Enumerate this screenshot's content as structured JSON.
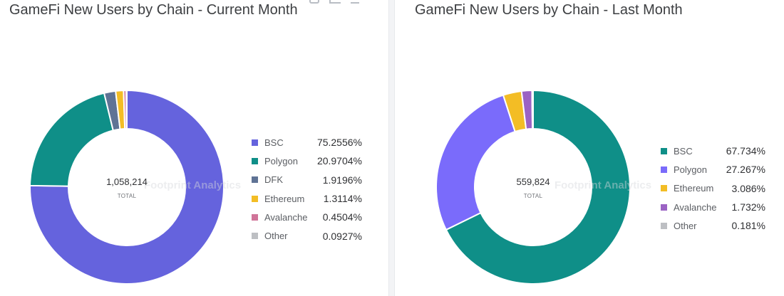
{
  "chart_data": [
    {
      "type": "pie",
      "title": "GameFi New Users by Chain - Current Month",
      "total_value": "1,058,214",
      "total_label": "TOTAL",
      "watermark": "Footprint Analytics",
      "categories": [
        "BSC",
        "Polygon",
        "DFK",
        "Ethereum",
        "Avalanche",
        "Other"
      ],
      "values": [
        75.2556,
        20.9704,
        1.9196,
        1.3114,
        0.4504,
        0.0927
      ],
      "value_labels": [
        "75.2556%",
        "20.9704%",
        "1.9196%",
        "1.3114%",
        "0.4504%",
        "0.0927%"
      ],
      "colors": [
        "#6563dd",
        "#0f8f88",
        "#5f7395",
        "#f3bd25",
        "#d07499",
        "#bdbfc3"
      ],
      "legend_position": "right"
    },
    {
      "type": "pie",
      "title": "GameFi New Users by Chain - Last Month",
      "total_value": "559,824",
      "total_label": "TOTAL",
      "watermark": "Footprint Analytics",
      "categories": [
        "BSC",
        "Polygon",
        "Ethereum",
        "Avalanche",
        "Other"
      ],
      "values": [
        67.734,
        27.267,
        3.086,
        1.732,
        0.181
      ],
      "value_labels": [
        "67.734%",
        "27.267%",
        "3.086%",
        "1.732%",
        "0.181%"
      ],
      "colors": [
        "#0f8f88",
        "#7a6bfb",
        "#f3bd25",
        "#9b63c4",
        "#bdbfc3"
      ],
      "legend_position": "right"
    }
  ],
  "toolbar": {
    "icons": [
      "export-icon",
      "edit-icon",
      "more-icon"
    ]
  }
}
